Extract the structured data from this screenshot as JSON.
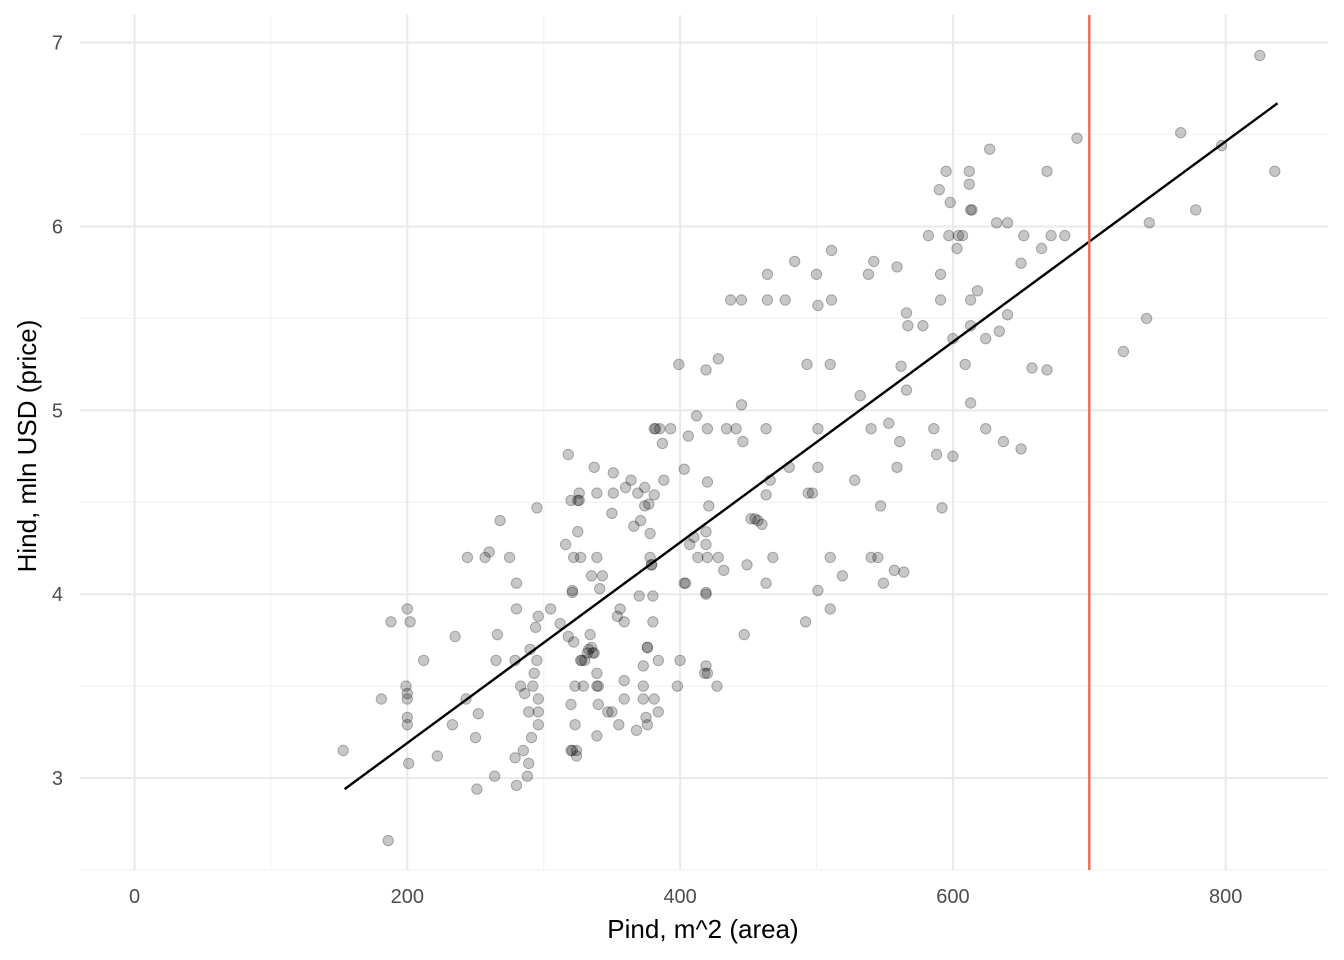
{
  "chart_data": {
    "type": "scatter",
    "xlabel": "Pind, m^2 (area)",
    "ylabel": "Hind, mln USD (price)",
    "xlim": [
      -40,
      875
    ],
    "ylim": [
      2.5,
      7.15
    ],
    "x_ticks": [
      0,
      200,
      400,
      600,
      800
    ],
    "y_ticks": [
      3,
      4,
      5,
      6,
      7
    ],
    "x_minor_ticks": [
      100,
      300,
      500,
      700
    ],
    "y_minor_ticks": [
      2.5,
      3.5,
      4.5,
      5.5,
      6.5
    ],
    "grid": true,
    "fit_line": {
      "x": [
        154,
        838
      ],
      "y": [
        2.94,
        6.67
      ],
      "color": "#000000"
    },
    "vline": {
      "x": 700,
      "color": "#f06a50"
    },
    "points": [
      [
        153,
        3.15
      ],
      [
        181,
        3.43
      ],
      [
        186,
        2.66
      ],
      [
        188,
        3.85
      ],
      [
        200,
        3.92
      ],
      [
        199,
        3.5
      ],
      [
        200,
        3.43
      ],
      [
        200,
        3.46
      ],
      [
        200,
        3.33
      ],
      [
        200,
        3.29
      ],
      [
        201,
        3.08
      ],
      [
        202,
        3.85
      ],
      [
        212,
        3.64
      ],
      [
        222,
        3.12
      ],
      [
        233,
        3.29
      ],
      [
        235,
        3.77
      ],
      [
        243,
        3.43
      ],
      [
        244,
        4.2
      ],
      [
        250,
        3.22
      ],
      [
        251,
        2.94
      ],
      [
        252,
        3.35
      ],
      [
        257,
        4.2
      ],
      [
        260,
        4.23
      ],
      [
        264,
        3.01
      ],
      [
        265,
        3.64
      ],
      [
        266,
        3.78
      ],
      [
        268,
        4.4
      ],
      [
        275,
        4.2
      ],
      [
        279,
        3.11
      ],
      [
        279,
        3.64
      ],
      [
        280,
        2.96
      ],
      [
        280,
        3.92
      ],
      [
        280,
        4.06
      ],
      [
        283,
        3.5
      ],
      [
        285,
        3.15
      ],
      [
        286,
        3.46
      ],
      [
        288,
        3.01
      ],
      [
        289,
        3.08
      ],
      [
        289,
        3.36
      ],
      [
        290,
        3.7
      ],
      [
        291,
        3.22
      ],
      [
        292,
        3.5
      ],
      [
        293,
        3.57
      ],
      [
        294,
        3.82
      ],
      [
        295,
        4.47
      ],
      [
        295,
        3.64
      ],
      [
        296,
        3.88
      ],
      [
        296,
        3.43
      ],
      [
        296,
        3.29
      ],
      [
        296,
        3.36
      ],
      [
        305,
        3.92
      ],
      [
        312,
        3.84
      ],
      [
        316,
        4.27
      ],
      [
        318,
        4.76
      ],
      [
        318,
        3.77
      ],
      [
        320,
        3.4
      ],
      [
        320,
        4.51
      ],
      [
        320,
        3.15
      ],
      [
        321,
        3.15
      ],
      [
        321,
        4.02
      ],
      [
        321,
        4.01
      ],
      [
        322,
        3.74
      ],
      [
        323,
        3.5
      ],
      [
        322,
        4.2
      ],
      [
        323,
        3.29
      ],
      [
        324,
        3.15
      ],
      [
        324,
        3.12
      ],
      [
        325,
        4.34
      ],
      [
        325,
        4.51
      ],
      [
        326,
        4.51
      ],
      [
        326,
        4.55
      ],
      [
        327,
        4.2
      ],
      [
        327,
        3.64
      ],
      [
        328,
        3.64
      ],
      [
        329,
        3.5
      ],
      [
        330,
        3.64
      ],
      [
        332,
        3.68
      ],
      [
        333,
        3.7
      ],
      [
        334,
        3.78
      ],
      [
        335,
        3.71
      ],
      [
        335,
        4.1
      ],
      [
        336,
        3.68
      ],
      [
        337,
        3.68
      ],
      [
        337,
        4.69
      ],
      [
        339,
        3.5
      ],
      [
        339,
        4.2
      ],
      [
        339,
        4.55
      ],
      [
        339,
        3.57
      ],
      [
        339,
        3.23
      ],
      [
        340,
        3.5
      ],
      [
        340,
        3.4
      ],
      [
        341,
        4.03
      ],
      [
        343,
        4.1
      ],
      [
        347,
        3.36
      ],
      [
        350,
        3.36
      ],
      [
        350,
        4.44
      ],
      [
        351,
        4.66
      ],
      [
        351,
        4.55
      ],
      [
        354,
        3.88
      ],
      [
        355,
        3.29
      ],
      [
        356,
        3.92
      ],
      [
        359,
        3.53
      ],
      [
        359,
        3.43
      ],
      [
        360,
        4.58
      ],
      [
        359,
        3.85
      ],
      [
        364,
        4.62
      ],
      [
        366,
        4.37
      ],
      [
        368,
        3.26
      ],
      [
        369,
        4.55
      ],
      [
        370,
        3.99
      ],
      [
        371,
        4.4
      ],
      [
        373,
        3.5
      ],
      [
        373,
        3.43
      ],
      [
        373,
        3.61
      ],
      [
        374,
        4.58
      ],
      [
        374,
        4.48
      ],
      [
        375,
        3.33
      ],
      [
        376,
        3.29
      ],
      [
        376,
        3.71
      ],
      [
        376,
        3.71
      ],
      [
        377,
        4.49
      ],
      [
        378,
        4.33
      ],
      [
        378,
        4.2
      ],
      [
        379,
        4.16
      ],
      [
        379,
        4.16
      ],
      [
        380,
        3.85
      ],
      [
        380,
        3.99
      ],
      [
        381,
        3.43
      ],
      [
        381,
        4.54
      ],
      [
        381,
        4.9
      ],
      [
        382,
        4.9
      ],
      [
        384,
        3.36
      ],
      [
        384,
        3.64
      ],
      [
        385,
        4.9
      ],
      [
        387,
        4.82
      ],
      [
        388,
        4.62
      ],
      [
        393,
        4.9
      ],
      [
        398,
        3.5
      ],
      [
        399,
        5.25
      ],
      [
        400,
        3.64
      ],
      [
        403,
        4.68
      ],
      [
        403,
        4.06
      ],
      [
        404,
        4.06
      ],
      [
        406,
        4.86
      ],
      [
        407,
        4.27
      ],
      [
        410,
        4.31
      ],
      [
        412,
        4.97
      ],
      [
        413,
        4.2
      ],
      [
        418,
        3.57
      ],
      [
        419,
        3.61
      ],
      [
        419,
        4.0
      ],
      [
        419,
        4.27
      ],
      [
        419,
        4.01
      ],
      [
        419,
        4.34
      ],
      [
        419,
        5.22
      ],
      [
        420,
        4.2
      ],
      [
        420,
        3.57
      ],
      [
        421,
        4.48
      ],
      [
        420,
        4.61
      ],
      [
        420,
        4.9
      ],
      [
        427,
        3.5
      ],
      [
        428,
        4.2
      ],
      [
        428,
        5.28
      ],
      [
        432,
        4.13
      ],
      [
        434,
        4.9
      ],
      [
        437,
        5.6
      ],
      [
        441,
        4.9
      ],
      [
        445,
        5.03
      ],
      [
        445,
        5.6
      ],
      [
        447,
        3.78
      ],
      [
        446,
        4.83
      ],
      [
        449,
        4.16
      ],
      [
        452,
        4.41
      ],
      [
        455,
        4.41
      ],
      [
        457,
        4.4
      ],
      [
        460,
        4.38
      ],
      [
        463,
        4.9
      ],
      [
        463,
        4.54
      ],
      [
        463,
        4.06
      ],
      [
        464,
        5.74
      ],
      [
        464,
        5.6
      ],
      [
        466,
        4.62
      ],
      [
        468,
        4.2
      ],
      [
        477,
        5.6
      ],
      [
        480,
        4.69
      ],
      [
        484,
        5.81
      ],
      [
        492,
        3.85
      ],
      [
        493,
        5.25
      ],
      [
        494,
        4.55
      ],
      [
        497,
        4.55
      ],
      [
        500,
        5.74
      ],
      [
        501,
        4.69
      ],
      [
        501,
        5.57
      ],
      [
        501,
        4.9
      ],
      [
        501,
        4.02
      ],
      [
        511,
        5.87
      ],
      [
        510,
        5.25
      ],
      [
        510,
        4.2
      ],
      [
        510,
        3.92
      ],
      [
        511,
        5.6
      ],
      [
        519,
        4.1
      ],
      [
        528,
        4.62
      ],
      [
        532,
        5.08
      ],
      [
        538,
        5.74
      ],
      [
        540,
        4.2
      ],
      [
        540,
        4.9
      ],
      [
        542,
        5.81
      ],
      [
        545,
        4.2
      ],
      [
        547,
        4.48
      ],
      [
        549,
        4.06
      ],
      [
        553,
        4.93
      ],
      [
        557,
        4.13
      ],
      [
        559,
        5.78
      ],
      [
        559,
        4.69
      ],
      [
        561,
        4.83
      ],
      [
        562,
        5.24
      ],
      [
        564,
        4.12
      ],
      [
        566,
        5.11
      ],
      [
        566,
        5.53
      ],
      [
        567,
        5.46
      ],
      [
        578,
        5.46
      ],
      [
        582,
        5.95
      ],
      [
        586,
        4.9
      ],
      [
        588,
        4.76
      ],
      [
        590,
        6.2
      ],
      [
        591,
        5.6
      ],
      [
        591,
        5.74
      ],
      [
        592,
        4.47
      ],
      [
        595,
        6.3
      ],
      [
        597,
        5.95
      ],
      [
        598,
        6.13
      ],
      [
        600,
        5.39
      ],
      [
        600,
        4.75
      ],
      [
        603,
        5.88
      ],
      [
        604,
        5.95
      ],
      [
        607,
        5.95
      ],
      [
        609,
        5.25
      ],
      [
        612,
        6.3
      ],
      [
        612,
        6.23
      ],
      [
        613,
        5.04
      ],
      [
        613,
        6.09
      ],
      [
        613,
        5.46
      ],
      [
        613,
        5.6
      ],
      [
        614,
        6.09
      ],
      [
        618,
        5.65
      ],
      [
        624,
        5.39
      ],
      [
        624,
        4.9
      ],
      [
        627,
        6.42
      ],
      [
        632,
        6.02
      ],
      [
        634,
        5.43
      ],
      [
        637,
        4.83
      ],
      [
        640,
        6.02
      ],
      [
        640,
        5.52
      ],
      [
        650,
        5.8
      ],
      [
        650,
        4.79
      ],
      [
        652,
        5.95
      ],
      [
        658,
        5.23
      ],
      [
        665,
        5.88
      ],
      [
        669,
        6.3
      ],
      [
        669,
        5.22
      ],
      [
        672,
        5.95
      ],
      [
        682,
        5.95
      ],
      [
        691,
        6.48
      ],
      [
        725,
        5.32
      ],
      [
        742,
        5.5
      ],
      [
        744,
        6.02
      ],
      [
        767,
        6.51
      ],
      [
        778,
        6.09
      ],
      [
        797,
        6.44
      ],
      [
        825,
        6.93
      ],
      [
        836,
        6.3
      ]
    ]
  }
}
